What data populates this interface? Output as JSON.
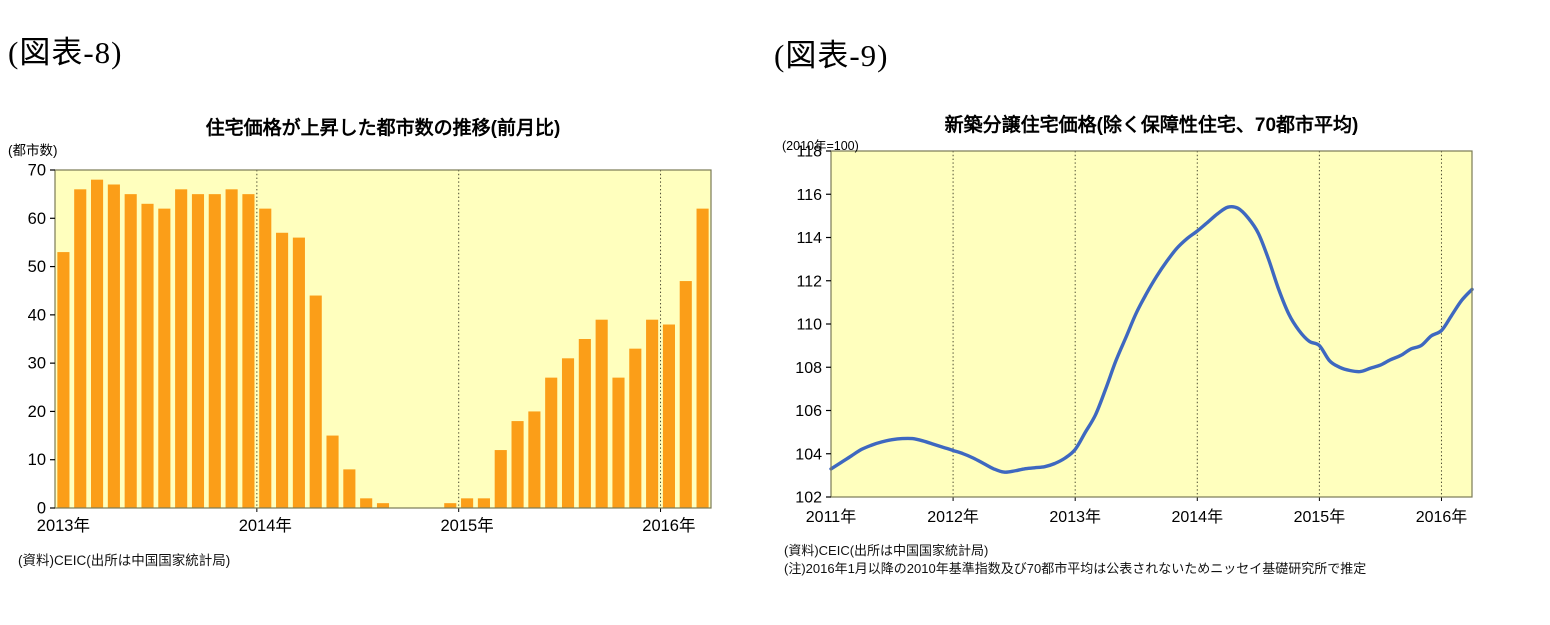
{
  "page": {
    "background": "#ffffff"
  },
  "figures": [
    {
      "heading": "(図表-8)",
      "title": "住宅価格が上昇した都市数の推移(前月比)",
      "y_axis_unit": "(都市数)",
      "source": "(資料)CEIC(出所は中国国家統計局)",
      "note": ""
    },
    {
      "heading": "(図表-9)",
      "title": "新築分譲住宅価格(除く保障性住宅、70都市平均)",
      "y_axis_unit": "(2010年=100)",
      "source": "(資料)CEIC(出所は中国国家統計局)",
      "note": "(注)2016年1月以降の2010年基準指数及び70都市平均は公表されないためニッセイ基礎研究所で推定"
    }
  ],
  "chart_data": [
    {
      "type": "bar",
      "title": "住宅価格が上昇した都市数の推移(前月比)",
      "xlabel": "",
      "ylabel": "(都市数)",
      "ylim": [
        0,
        70
      ],
      "yticks": [
        0,
        10,
        20,
        30,
        40,
        50,
        60,
        70
      ],
      "grid": "vertical-dotted-yearly",
      "legend": "none",
      "x_months": [
        "2013-01",
        "2013-02",
        "2013-03",
        "2013-04",
        "2013-05",
        "2013-06",
        "2013-07",
        "2013-08",
        "2013-09",
        "2013-10",
        "2013-11",
        "2013-12",
        "2014-01",
        "2014-02",
        "2014-03",
        "2014-04",
        "2014-05",
        "2014-06",
        "2014-07",
        "2014-08",
        "2014-09",
        "2014-10",
        "2014-11",
        "2014-12",
        "2015-01",
        "2015-02",
        "2015-03",
        "2015-04",
        "2015-05",
        "2015-06",
        "2015-07",
        "2015-08",
        "2015-09",
        "2015-10",
        "2015-11",
        "2015-12",
        "2016-01",
        "2016-02",
        "2016-03"
      ],
      "values": [
        53,
        66,
        68,
        67,
        65,
        63,
        62,
        66,
        65,
        65,
        66,
        65,
        62,
        57,
        56,
        44,
        15,
        8,
        2,
        1,
        0,
        0,
        0,
        1,
        2,
        2,
        12,
        18,
        20,
        27,
        31,
        35,
        39,
        27,
        33,
        39,
        38,
        47,
        62
      ],
      "year_labels": [
        "2013年",
        "2014年",
        "2015年",
        "2016年"
      ],
      "year_start_indices": [
        0,
        12,
        24,
        36
      ],
      "colors": {
        "bar": "#FB9E18",
        "plot_bg": "#FFFFBE",
        "frame": "#7A7A55",
        "gridline": "#4d4d33",
        "text": "#000000"
      }
    },
    {
      "type": "line",
      "title": "新築分譲住宅価格(除く保障性住宅、70都市平均)",
      "xlabel": "",
      "ylabel": "(2010年=100)",
      "ylim": [
        102,
        118
      ],
      "yticks": [
        102,
        104,
        106,
        108,
        110,
        112,
        114,
        116,
        118
      ],
      "grid": "vertical-dotted-yearly",
      "legend": "none",
      "x_months": [
        "2011-01",
        "2011-02",
        "2011-03",
        "2011-04",
        "2011-05",
        "2011-06",
        "2011-07",
        "2011-08",
        "2011-09",
        "2011-10",
        "2011-11",
        "2011-12",
        "2012-01",
        "2012-02",
        "2012-03",
        "2012-04",
        "2012-05",
        "2012-06",
        "2012-07",
        "2012-08",
        "2012-09",
        "2012-10",
        "2012-11",
        "2012-12",
        "2013-01",
        "2013-02",
        "2013-03",
        "2013-04",
        "2013-05",
        "2013-06",
        "2013-07",
        "2013-08",
        "2013-09",
        "2013-10",
        "2013-11",
        "2013-12",
        "2014-01",
        "2014-02",
        "2014-03",
        "2014-04",
        "2014-05",
        "2014-06",
        "2014-07",
        "2014-08",
        "2014-09",
        "2014-10",
        "2014-11",
        "2014-12",
        "2015-01",
        "2015-02",
        "2015-03",
        "2015-04",
        "2015-05",
        "2015-06",
        "2015-07",
        "2015-08",
        "2015-09",
        "2015-10",
        "2015-11",
        "2015-12",
        "2016-01",
        "2016-02",
        "2016-03",
        "2016-04"
      ],
      "values": [
        103.3,
        103.6,
        103.9,
        104.2,
        104.4,
        104.55,
        104.65,
        104.7,
        104.7,
        104.6,
        104.45,
        104.3,
        104.15,
        104.0,
        103.8,
        103.55,
        103.3,
        103.15,
        103.2,
        103.3,
        103.35,
        103.4,
        103.55,
        103.8,
        104.2,
        105.0,
        105.8,
        107.0,
        108.3,
        109.4,
        110.5,
        111.4,
        112.2,
        112.9,
        113.5,
        113.95,
        114.3,
        114.7,
        115.1,
        115.4,
        115.35,
        114.9,
        114.2,
        113.0,
        111.6,
        110.45,
        109.7,
        109.2,
        109.0,
        108.3,
        108.0,
        107.85,
        107.8,
        107.95,
        108.1,
        108.35,
        108.55,
        108.85,
        109.0,
        109.45,
        109.7,
        110.4,
        111.1,
        111.6
      ],
      "year_labels": [
        "2011年",
        "2012年",
        "2013年",
        "2014年",
        "2015年",
        "2016年"
      ],
      "year_start_indices": [
        0,
        12,
        24,
        36,
        48,
        60
      ],
      "colors": {
        "line": "#3E68C0",
        "plot_bg": "#FFFFBE",
        "frame": "#7A7A55",
        "gridline": "#4d4d33",
        "text": "#000000"
      }
    }
  ]
}
